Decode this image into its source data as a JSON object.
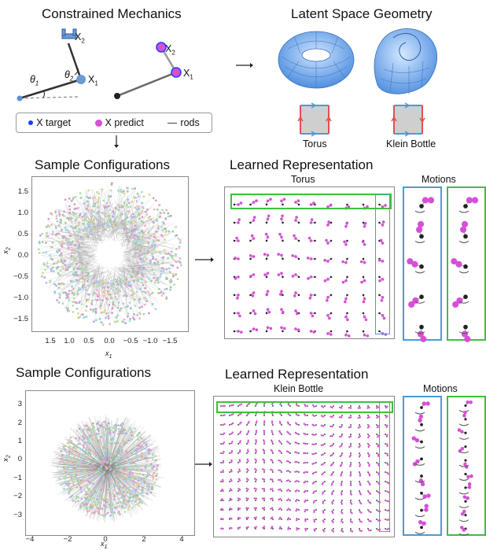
{
  "top": {
    "constrained_title": "Constrained Mechanics",
    "latent_title": "Latent Space Geometry",
    "arm_labels": {
      "x2": "X",
      "x2_sub": "2",
      "x1": "X",
      "x1_sub": "1",
      "theta1": "θ",
      "theta1_sub": "1",
      "theta2": "θ",
      "theta2_sub": "2"
    },
    "legend": {
      "target": "X target",
      "predict": "X predict",
      "rods": "rods"
    },
    "torus_label": "Torus",
    "klein_label": "Klein Bottle"
  },
  "row1": {
    "sample_title": "Sample Configurations",
    "learned_title": "Learned Representation",
    "grid_title": "Torus",
    "motions_title": "Motions",
    "y_ticks": [
      "1.5",
      "1.0",
      "0.5",
      "0.0",
      "−0.5",
      "−1.0",
      "−1.5"
    ],
    "x_ticks": [
      "1.5",
      "1.0",
      "0.5",
      "0.0",
      "−0.5",
      "−1.0",
      "−1.5"
    ],
    "xlabel": "x",
    "xlabel_sub": "1",
    "ylabel": "x",
    "ylabel_sub": "2"
  },
  "row2": {
    "sample_title": "Sample Configurations",
    "learned_title": "Learned Representation",
    "grid_title": "Klein Bottle",
    "motions_title": "Motions",
    "y_ticks": [
      "3",
      "2",
      "1",
      "0",
      "−1",
      "−2",
      "−3"
    ],
    "x_ticks": [
      "−4",
      "−2",
      "0",
      "2",
      "4"
    ],
    "xlabel": "x",
    "xlabel_sub": "1",
    "ylabel": "x",
    "ylabel_sub": "2"
  },
  "colors": {
    "predict": "#d64fd6",
    "target": "#1a3cff",
    "rod": "#777777",
    "blue_frame": "#4a9bd4",
    "green_frame": "#3fbf3f",
    "torus_fill": "#7fb4f0",
    "square_fill": "#cfcfcf"
  }
}
